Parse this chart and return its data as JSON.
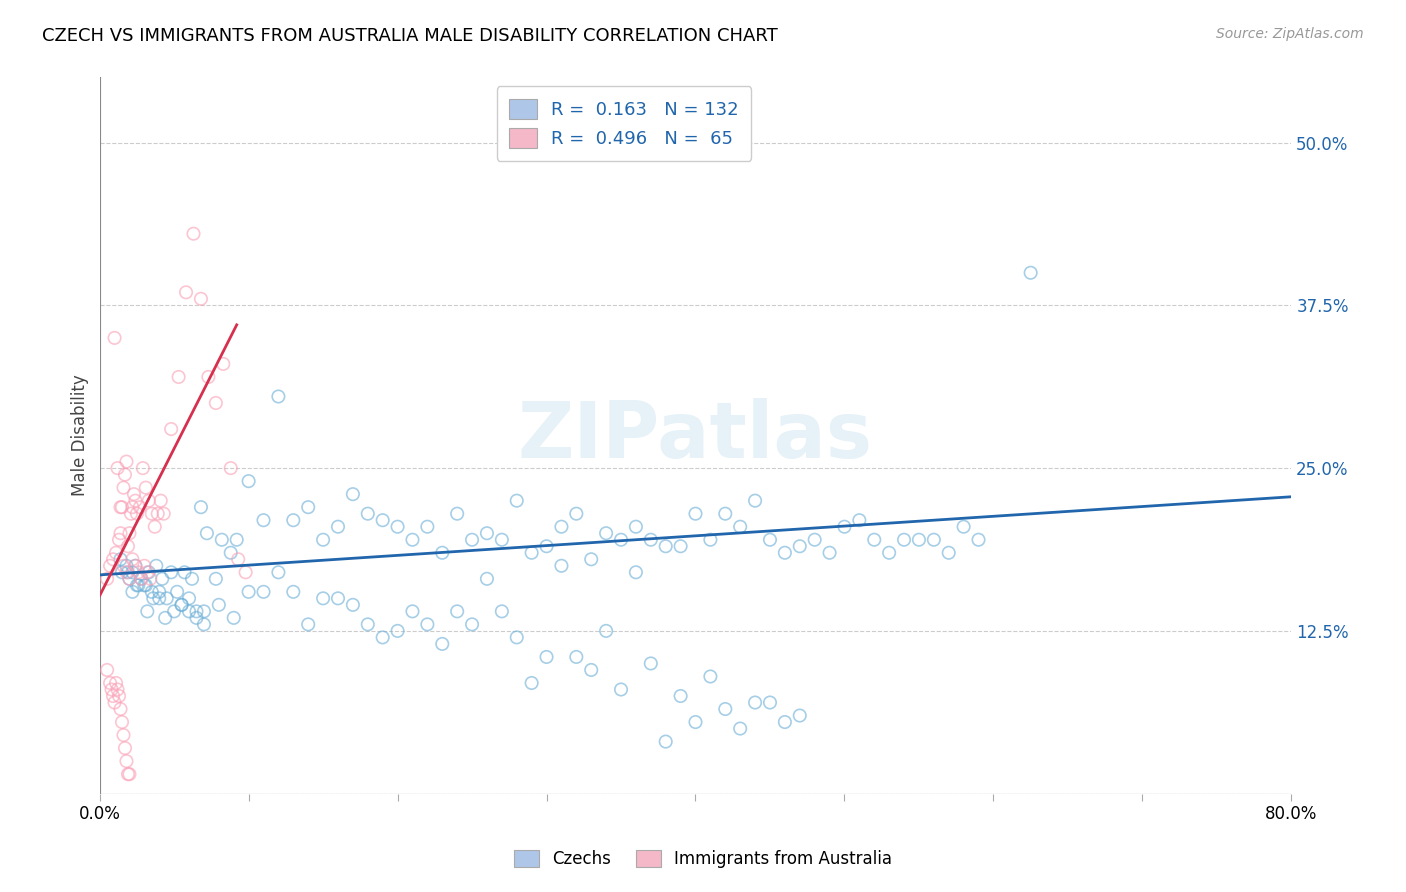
{
  "title": "CZECH VS IMMIGRANTS FROM AUSTRALIA MALE DISABILITY CORRELATION CHART",
  "source": "Source: ZipAtlas.com",
  "ylabel": "Male Disability",
  "xlim": [
    0.0,
    0.8
  ],
  "ylim": [
    0.0,
    0.55
  ],
  "xticks": [
    0.0,
    0.1,
    0.2,
    0.3,
    0.4,
    0.5,
    0.6,
    0.7,
    0.8
  ],
  "xticklabels": [
    "0.0%",
    "",
    "",
    "",
    "",
    "",
    "",
    "",
    "80.0%"
  ],
  "yticks": [
    0.0,
    0.125,
    0.25,
    0.375,
    0.5
  ],
  "yticklabels": [
    "",
    "12.5%",
    "25.0%",
    "37.5%",
    "50.0%"
  ],
  "legend1_R": "0.163",
  "legend1_N": "132",
  "legend2_R": "0.496",
  "legend2_N": "65",
  "blue_edge_color": "#6baed6",
  "pink_edge_color": "#fa9fb5",
  "blue_line_color": "#2166ac",
  "pink_line_color": "#d6304e",
  "watermark": "ZIPatlas",
  "czechs_x": [
    0.018,
    0.022,
    0.028,
    0.014,
    0.019,
    0.024,
    0.031,
    0.033,
    0.038,
    0.042,
    0.048,
    0.052,
    0.057,
    0.062,
    0.068,
    0.072,
    0.078,
    0.082,
    0.088,
    0.092,
    0.1,
    0.11,
    0.12,
    0.13,
    0.14,
    0.15,
    0.16,
    0.17,
    0.18,
    0.19,
    0.2,
    0.21,
    0.22,
    0.23,
    0.24,
    0.25,
    0.26,
    0.27,
    0.28,
    0.29,
    0.3,
    0.31,
    0.32,
    0.33,
    0.34,
    0.35,
    0.36,
    0.37,
    0.38,
    0.39,
    0.4,
    0.41,
    0.42,
    0.43,
    0.44,
    0.45,
    0.46,
    0.47,
    0.48,
    0.49,
    0.5,
    0.51,
    0.52,
    0.53,
    0.54,
    0.55,
    0.56,
    0.57,
    0.58,
    0.59,
    0.625,
    0.022,
    0.026,
    0.032,
    0.036,
    0.04,
    0.044,
    0.05,
    0.055,
    0.06,
    0.065,
    0.07,
    0.08,
    0.09,
    0.1,
    0.11,
    0.12,
    0.13,
    0.14,
    0.15,
    0.16,
    0.17,
    0.18,
    0.19,
    0.2,
    0.21,
    0.22,
    0.23,
    0.24,
    0.25,
    0.26,
    0.27,
    0.28,
    0.29,
    0.3,
    0.31,
    0.32,
    0.33,
    0.34,
    0.35,
    0.36,
    0.37,
    0.38,
    0.39,
    0.4,
    0.41,
    0.42,
    0.43,
    0.44,
    0.45,
    0.46,
    0.47,
    0.015,
    0.02,
    0.025,
    0.03,
    0.035,
    0.04,
    0.045,
    0.055,
    0.06,
    0.065,
    0.07
  ],
  "czechs_y": [
    0.175,
    0.17,
    0.165,
    0.18,
    0.17,
    0.175,
    0.16,
    0.17,
    0.175,
    0.165,
    0.17,
    0.155,
    0.17,
    0.165,
    0.22,
    0.2,
    0.165,
    0.195,
    0.185,
    0.195,
    0.24,
    0.21,
    0.305,
    0.21,
    0.22,
    0.195,
    0.205,
    0.23,
    0.215,
    0.21,
    0.205,
    0.195,
    0.205,
    0.185,
    0.215,
    0.195,
    0.2,
    0.195,
    0.225,
    0.185,
    0.19,
    0.205,
    0.215,
    0.18,
    0.2,
    0.195,
    0.205,
    0.195,
    0.19,
    0.19,
    0.215,
    0.195,
    0.215,
    0.205,
    0.225,
    0.195,
    0.185,
    0.19,
    0.195,
    0.185,
    0.205,
    0.21,
    0.195,
    0.185,
    0.195,
    0.195,
    0.195,
    0.185,
    0.205,
    0.195,
    0.4,
    0.155,
    0.16,
    0.14,
    0.15,
    0.155,
    0.135,
    0.14,
    0.145,
    0.15,
    0.14,
    0.14,
    0.145,
    0.135,
    0.155,
    0.155,
    0.17,
    0.155,
    0.13,
    0.15,
    0.15,
    0.145,
    0.13,
    0.12,
    0.125,
    0.14,
    0.13,
    0.115,
    0.14,
    0.13,
    0.165,
    0.14,
    0.12,
    0.085,
    0.105,
    0.175,
    0.105,
    0.095,
    0.125,
    0.08,
    0.17,
    0.1,
    0.04,
    0.075,
    0.055,
    0.09,
    0.065,
    0.05,
    0.07,
    0.07,
    0.055,
    0.06,
    0.17,
    0.165,
    0.16,
    0.16,
    0.155,
    0.15,
    0.15,
    0.145,
    0.14,
    0.135,
    0.13
  ],
  "australia_x": [
    0.005,
    0.007,
    0.009,
    0.011,
    0.013,
    0.014,
    0.015,
    0.016,
    0.017,
    0.018,
    0.019,
    0.02,
    0.021,
    0.022,
    0.023,
    0.024,
    0.025,
    0.027,
    0.029,
    0.031,
    0.033,
    0.035,
    0.037,
    0.039,
    0.041,
    0.043,
    0.048,
    0.053,
    0.058,
    0.063,
    0.068,
    0.073,
    0.078,
    0.083,
    0.088,
    0.093,
    0.098,
    0.01,
    0.012,
    0.014,
    0.016,
    0.018,
    0.02,
    0.022,
    0.024,
    0.026,
    0.028,
    0.03,
    0.032,
    0.034,
    0.005,
    0.007,
    0.008,
    0.009,
    0.01,
    0.011,
    0.012,
    0.013,
    0.014,
    0.015,
    0.016,
    0.017,
    0.018,
    0.019,
    0.02
  ],
  "australia_y": [
    0.165,
    0.175,
    0.18,
    0.185,
    0.195,
    0.2,
    0.22,
    0.235,
    0.245,
    0.255,
    0.19,
    0.2,
    0.215,
    0.22,
    0.23,
    0.225,
    0.215,
    0.22,
    0.25,
    0.235,
    0.225,
    0.215,
    0.205,
    0.215,
    0.225,
    0.215,
    0.28,
    0.32,
    0.385,
    0.43,
    0.38,
    0.32,
    0.3,
    0.33,
    0.25,
    0.18,
    0.17,
    0.35,
    0.25,
    0.22,
    0.175,
    0.17,
    0.165,
    0.18,
    0.175,
    0.17,
    0.165,
    0.175,
    0.17,
    0.165,
    0.095,
    0.085,
    0.08,
    0.075,
    0.07,
    0.085,
    0.08,
    0.075,
    0.065,
    0.055,
    0.045,
    0.035,
    0.025,
    0.015,
    0.015
  ]
}
